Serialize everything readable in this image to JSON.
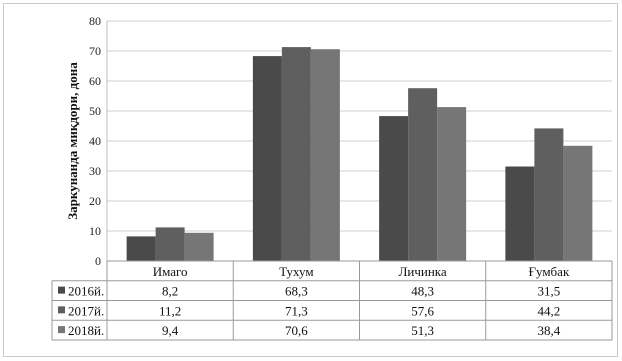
{
  "chart_data": {
    "type": "bar",
    "title": "",
    "xlabel": "",
    "ylabel": "Заркунанда миқдори, дона",
    "ylim": [
      0,
      80
    ],
    "yticks": [
      0,
      10,
      20,
      30,
      40,
      50,
      60,
      70,
      80
    ],
    "grid": true,
    "legend": "table-left",
    "categories": [
      "Имаго",
      "Тухум",
      "Личинка",
      "Ғумбак"
    ],
    "series": [
      {
        "name": "2016й.",
        "values": [
          8.2,
          68.3,
          48.3,
          31.5
        ],
        "labels": [
          "8,2",
          "68,3",
          "48,3",
          "31,5"
        ],
        "color": "#4a4a4a"
      },
      {
        "name": "2017й.",
        "values": [
          11.2,
          71.3,
          57.6,
          44.2
        ],
        "labels": [
          "11,2",
          "71,3",
          "57,6",
          "44,2"
        ],
        "color": "#5f5f5f"
      },
      {
        "name": "2018й.",
        "values": [
          9.4,
          70.6,
          51.3,
          38.4
        ],
        "labels": [
          "9,4",
          "70,6",
          "51,3",
          "38,4"
        ],
        "color": "#767676"
      }
    ]
  }
}
